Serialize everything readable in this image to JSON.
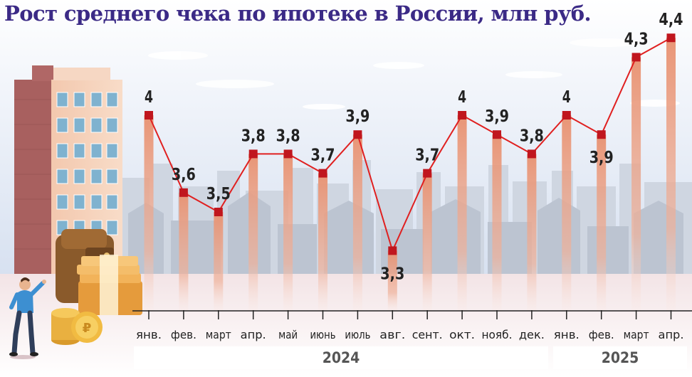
{
  "title": "Рост среднего чека по ипотеке в России, млн руб.",
  "colors": {
    "title": "#3b2a86",
    "line": "#e02020",
    "marker": "#c0161e",
    "column": "#e59a7c",
    "sky": "#dde6f3",
    "skyline": "#c4cbd6",
    "axis": "#222222"
  },
  "years": [
    {
      "label": "2024",
      "months": 12
    },
    {
      "label": "2025",
      "months": 4
    }
  ],
  "chart_data": {
    "type": "line",
    "title": "Рост среднего чека по ипотеке в России, млн руб.",
    "categories": [
      "янв.",
      "фев.",
      "март",
      "апр.",
      "май",
      "июнь",
      "июль",
      "авг.",
      "сент.",
      "окт.",
      "нояб.",
      "дек.",
      "янв.",
      "фев.",
      "март",
      "апр."
    ],
    "series": [
      {
        "values": [
          4,
          3.6,
          3.5,
          3.8,
          3.8,
          3.7,
          3.9,
          3.3,
          3.7,
          4,
          3.9,
          3.8,
          4,
          3.9,
          4.3,
          4.4
        ]
      }
    ],
    "data_labels": [
      "4",
      "3,6",
      "3,5",
      "3,8",
      "3,8",
      "3,7",
      "3,9",
      "3,3",
      "3,7",
      "4",
      "3,9",
      "3,8",
      "4",
      "3,9",
      "4,3",
      "4,4"
    ],
    "label_position": [
      "above",
      "above",
      "above",
      "above",
      "above",
      "above",
      "above",
      "below",
      "above",
      "above",
      "above",
      "above",
      "above",
      "below",
      "above",
      "above"
    ],
    "grid": false,
    "legend": "none"
  }
}
